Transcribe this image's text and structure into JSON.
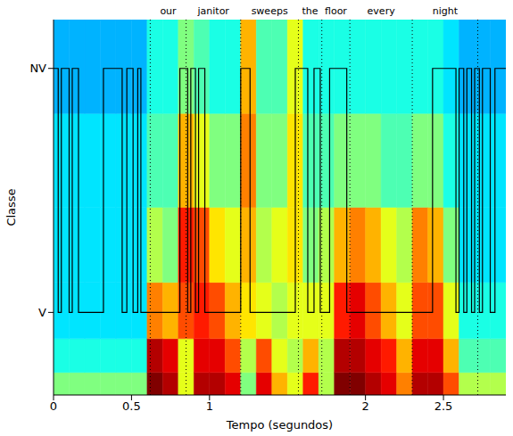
{
  "chart_data": {
    "type": "line",
    "x_label": "Tempo (segundos)",
    "y_label": "Classe",
    "xlim": [
      0,
      2.9
    ],
    "xticks": [
      0,
      0.5,
      1,
      2,
      2.5
    ],
    "ylim": [
      0,
      1
    ],
    "yticks": [
      {
        "value": 0.22,
        "label": "V"
      },
      {
        "value": 0.87,
        "label": "NV"
      }
    ],
    "color": "#000000",
    "line_style": "step",
    "x": [
      0,
      0.03,
      0.05,
      0.1,
      0.12,
      0.16,
      0.32,
      0.44,
      0.47,
      0.51,
      0.54,
      0.56,
      0.81,
      0.86,
      0.88,
      0.91,
      0.93,
      0.97,
      1.2,
      1.26,
      1.55,
      1.63,
      1.67,
      1.71,
      1.77,
      1.88,
      2.43,
      2.58,
      2.6,
      2.63,
      2.65,
      2.68,
      2.7,
      2.73,
      2.75,
      2.8,
      2.83,
      2.9
    ],
    "values": [
      "NV",
      "V",
      "NV",
      "V",
      "NV",
      "V",
      "NV",
      "V",
      "NV",
      "V",
      "NV",
      "V",
      "NV",
      "V",
      "NV",
      "V",
      "NV",
      "V",
      "NV",
      "V",
      "NV",
      "V",
      "NV",
      "V",
      "NV",
      "V",
      "NV",
      "V",
      "NV",
      "V",
      "NV",
      "V",
      "NV",
      "V",
      "NV",
      "V",
      "NV",
      "NV"
    ],
    "words": [
      {
        "text": "our",
        "start": 0.62,
        "end": 0.85
      },
      {
        "text": "janitor",
        "start": 0.85,
        "end": 1.2
      },
      {
        "text": "sweeps",
        "start": 1.2,
        "end": 1.57
      },
      {
        "text": "the",
        "start": 1.57,
        "end": 1.72
      },
      {
        "text": "floor",
        "start": 1.72,
        "end": 1.9
      },
      {
        "text": "every",
        "start": 1.9,
        "end": 2.3
      },
      {
        "text": "night",
        "start": 2.3,
        "end": 2.72
      }
    ],
    "heatmap": {
      "x_edges": [
        0,
        0.1,
        0.2,
        0.3,
        0.4,
        0.5,
        0.6,
        0.7,
        0.8,
        0.9,
        1.0,
        1.1,
        1.2,
        1.3,
        1.4,
        1.5,
        1.6,
        1.7,
        1.8,
        1.9,
        2.0,
        2.1,
        2.2,
        2.3,
        2.4,
        2.5,
        2.6,
        2.7,
        2.8,
        2.9
      ],
      "y_edges": [
        0,
        0.06,
        0.15,
        0.3,
        0.5,
        0.75,
        1
      ],
      "range": [
        0,
        1
      ],
      "cells": [
        [
          0.5,
          0.4,
          0.35,
          0.35,
          0.35,
          0.3
        ],
        [
          0.5,
          0.4,
          0.35,
          0.35,
          0.35,
          0.3
        ],
        [
          0.5,
          0.4,
          0.35,
          0.35,
          0.35,
          0.3
        ],
        [
          0.5,
          0.4,
          0.35,
          0.35,
          0.35,
          0.3
        ],
        [
          0.5,
          0.4,
          0.35,
          0.35,
          0.35,
          0.3
        ],
        [
          0.5,
          0.4,
          0.35,
          0.35,
          0.35,
          0.3
        ],
        [
          1.0,
          0.95,
          0.75,
          0.55,
          0.45,
          0.4
        ],
        [
          0.95,
          0.9,
          0.7,
          0.5,
          0.45,
          0.4
        ],
        [
          0.6,
          0.6,
          0.8,
          0.85,
          0.7,
          0.5
        ],
        [
          0.95,
          0.9,
          0.85,
          0.8,
          0.6,
          0.45
        ],
        [
          0.95,
          0.9,
          0.8,
          0.65,
          0.5,
          0.4
        ],
        [
          0.9,
          0.8,
          0.7,
          0.6,
          0.5,
          0.4
        ],
        [
          0.5,
          0.55,
          0.65,
          0.7,
          0.75,
          0.7
        ],
        [
          0.9,
          0.8,
          0.6,
          0.55,
          0.5,
          0.45
        ],
        [
          0.7,
          0.6,
          0.55,
          0.6,
          0.5,
          0.45
        ],
        [
          0.6,
          0.55,
          0.6,
          0.65,
          0.65,
          0.6
        ],
        [
          0.85,
          0.7,
          0.6,
          0.5,
          0.45,
          0.4
        ],
        [
          0.55,
          0.55,
          0.6,
          0.55,
          0.45,
          0.4
        ],
        [
          1.0,
          0.95,
          0.85,
          0.7,
          0.5,
          0.4
        ],
        [
          1.0,
          0.95,
          0.9,
          0.75,
          0.5,
          0.4
        ],
        [
          0.95,
          0.9,
          0.8,
          0.7,
          0.5,
          0.4
        ],
        [
          0.9,
          0.85,
          0.7,
          0.6,
          0.45,
          0.4
        ],
        [
          0.75,
          0.7,
          0.6,
          0.55,
          0.45,
          0.4
        ],
        [
          0.95,
          0.9,
          0.8,
          0.75,
          0.5,
          0.4
        ],
        [
          0.95,
          0.9,
          0.8,
          0.7,
          0.5,
          0.4
        ],
        [
          0.8,
          0.7,
          0.6,
          0.5,
          0.4,
          0.35
        ],
        [
          0.55,
          0.45,
          0.4,
          0.35,
          0.35,
          0.3
        ],
        [
          0.55,
          0.45,
          0.4,
          0.35,
          0.35,
          0.3
        ],
        [
          0.55,
          0.45,
          0.4,
          0.35,
          0.35,
          0.3
        ]
      ]
    }
  }
}
